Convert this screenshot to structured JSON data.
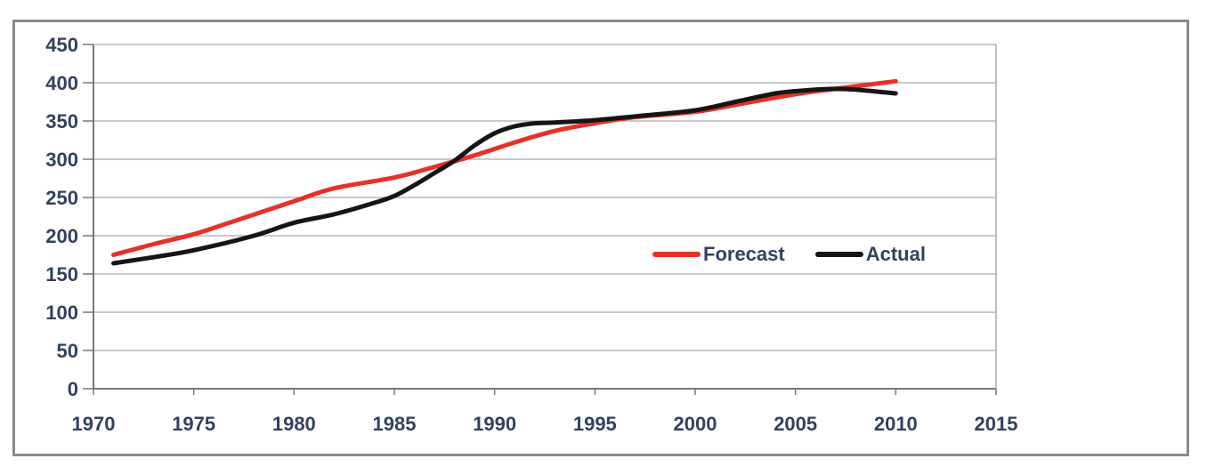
{
  "figure": {
    "border_color": "#8a8a8a",
    "background": "#ffffff"
  },
  "chart_data": {
    "type": "line",
    "title": "",
    "xlabel": "",
    "ylabel": "",
    "xlim": [
      1970,
      2015
    ],
    "ylim": [
      0,
      450
    ],
    "x_ticks": [
      "1970",
      "1975",
      "1980",
      "1985",
      "1990",
      "1995",
      "2000",
      "2005",
      "2010",
      "2015"
    ],
    "y_ticks": [
      "0",
      "50",
      "100",
      "150",
      "200",
      "250",
      "300",
      "350",
      "400",
      "450"
    ],
    "grid": "horizontal",
    "legend_position": "inside-middle-right",
    "axis_text_color": "#32415f",
    "gridline_color": "#a9a9a9",
    "axis_line_color": "#777777",
    "line_width": 5,
    "series": [
      {
        "name": "Forecast",
        "color": "#e53228",
        "points": [
          [
            1971,
            175
          ],
          [
            1973,
            189
          ],
          [
            1975,
            202
          ],
          [
            1977,
            219
          ],
          [
            1980,
            245
          ],
          [
            1982,
            262
          ],
          [
            1985,
            276
          ],
          [
            1987,
            290
          ],
          [
            1989,
            305
          ],
          [
            1991,
            322
          ],
          [
            1993,
            337
          ],
          [
            1995,
            347
          ],
          [
            1997,
            355
          ],
          [
            2000,
            362
          ],
          [
            2002,
            371
          ],
          [
            2005,
            385
          ],
          [
            2007,
            392
          ],
          [
            2010,
            402
          ]
        ]
      },
      {
        "name": "Actual",
        "color": "#151515",
        "points": [
          [
            1971,
            164
          ],
          [
            1973,
            172
          ],
          [
            1975,
            181
          ],
          [
            1978,
            200
          ],
          [
            1980,
            217
          ],
          [
            1982,
            228
          ],
          [
            1984,
            243
          ],
          [
            1985,
            252
          ],
          [
            1986,
            266
          ],
          [
            1987,
            282
          ],
          [
            1988,
            298
          ],
          [
            1989,
            318
          ],
          [
            1990,
            334
          ],
          [
            1991,
            343
          ],
          [
            1992,
            347
          ],
          [
            1993,
            348
          ],
          [
            1995,
            351
          ],
          [
            1997,
            356
          ],
          [
            2000,
            364
          ],
          [
            2002,
            375
          ],
          [
            2004,
            386
          ],
          [
            2005,
            389
          ],
          [
            2006,
            391
          ],
          [
            2007,
            392
          ],
          [
            2008,
            391
          ],
          [
            2010,
            386
          ]
        ]
      }
    ]
  }
}
